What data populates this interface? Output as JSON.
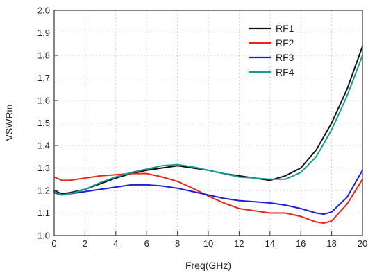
{
  "chart_data": {
    "type": "line",
    "xlabel": "Freq(GHz)",
    "ylabel": "VSWRin",
    "xlim": [
      0,
      20
    ],
    "ylim": [
      1.0,
      2.0
    ],
    "xticks": [
      0,
      2,
      4,
      6,
      8,
      10,
      12,
      14,
      16,
      18,
      20
    ],
    "yticks": [
      1.0,
      1.1,
      1.2,
      1.3,
      1.4,
      1.5,
      1.6,
      1.7,
      1.8,
      1.9,
      2.0
    ],
    "xtick_labels": [
      "0",
      "2",
      "4",
      "6",
      "8",
      "10",
      "12",
      "14",
      "16",
      "18",
      "20"
    ],
    "ytick_labels": [
      "1.0",
      "1.1",
      "1.2",
      "1.3",
      "1.4",
      "1.5",
      "1.6",
      "1.7",
      "1.8",
      "1.9",
      "2.0"
    ],
    "grid": true,
    "legend_position": "top-right",
    "series": [
      {
        "name": "RF1",
        "color": "#111111",
        "x": [
          0,
          0.5,
          1,
          2,
          3,
          4,
          5,
          6,
          7,
          8,
          9,
          10,
          11,
          12,
          13,
          14,
          14.5,
          15,
          16,
          17,
          18,
          19,
          20
        ],
        "y": [
          1.2,
          1.185,
          1.19,
          1.205,
          1.23,
          1.255,
          1.275,
          1.29,
          1.3,
          1.31,
          1.3,
          1.29,
          1.275,
          1.265,
          1.255,
          1.245,
          1.255,
          1.265,
          1.3,
          1.38,
          1.5,
          1.65,
          1.84
        ]
      },
      {
        "name": "RF2",
        "color": "#e8261c",
        "x": [
          0,
          0.5,
          1,
          2,
          3,
          4,
          5,
          6,
          7,
          8,
          9,
          10,
          11,
          12,
          13,
          14,
          15,
          16,
          17,
          17.5,
          18,
          19,
          20
        ],
        "y": [
          1.26,
          1.245,
          1.245,
          1.255,
          1.265,
          1.27,
          1.275,
          1.275,
          1.26,
          1.24,
          1.21,
          1.175,
          1.145,
          1.12,
          1.11,
          1.1,
          1.1,
          1.085,
          1.06,
          1.055,
          1.065,
          1.14,
          1.25
        ]
      },
      {
        "name": "RF3",
        "color": "#1f1fd6",
        "x": [
          0,
          0.5,
          1,
          2,
          3,
          4,
          5,
          6,
          7,
          8,
          9,
          10,
          11,
          12,
          13,
          14,
          15,
          16,
          17,
          17.5,
          18,
          19,
          20
        ],
        "y": [
          1.19,
          1.18,
          1.185,
          1.195,
          1.205,
          1.215,
          1.225,
          1.225,
          1.22,
          1.21,
          1.195,
          1.18,
          1.165,
          1.155,
          1.15,
          1.145,
          1.135,
          1.12,
          1.1,
          1.095,
          1.105,
          1.17,
          1.29
        ]
      },
      {
        "name": "RF4",
        "color": "#1a9a96",
        "x": [
          0,
          0.5,
          1,
          2,
          3,
          4,
          5,
          6,
          7,
          8,
          9,
          10,
          11,
          12,
          13,
          14,
          15,
          16,
          17,
          18,
          19,
          20
        ],
        "y": [
          1.195,
          1.18,
          1.185,
          1.205,
          1.235,
          1.26,
          1.28,
          1.295,
          1.31,
          1.315,
          1.305,
          1.29,
          1.275,
          1.26,
          1.255,
          1.25,
          1.25,
          1.28,
          1.35,
          1.47,
          1.62,
          1.8
        ]
      }
    ]
  }
}
